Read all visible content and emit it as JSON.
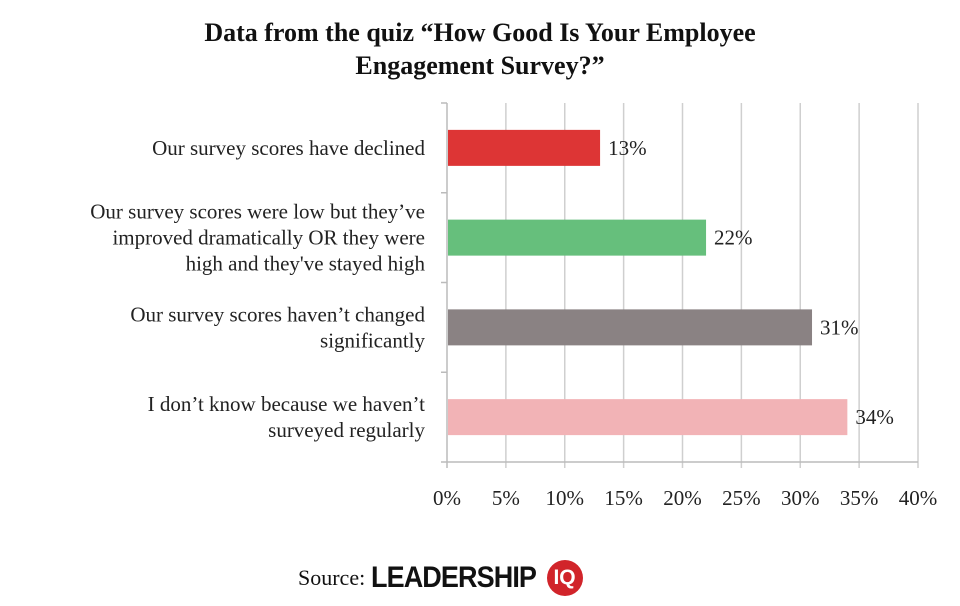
{
  "chart_data": {
    "type": "bar",
    "orientation": "horizontal",
    "title": "Data from the quiz “How Good Is Your Employee Engagement Survey?”",
    "title_lines": [
      "Data from the quiz “How Good Is Your Employee",
      "Engagement Survey?”"
    ],
    "categories": [
      [
        "Our survey scores have declined"
      ],
      [
        "Our survey scores were low but they’ve",
        "improved dramatically OR they were",
        "high and they've stayed high"
      ],
      [
        "Our survey scores haven’t changed",
        "significantly"
      ],
      [
        "I don’t know because we haven’t",
        "surveyed regularly"
      ]
    ],
    "values": [
      13,
      22,
      31,
      34
    ],
    "data_labels": [
      "13%",
      "22%",
      "31%",
      "34%"
    ],
    "colors": [
      "#dd3535",
      "#66bf7c",
      "#8a8283",
      "#f2b3b6"
    ],
    "xlim": [
      0,
      40
    ],
    "xticks": [
      0,
      5,
      10,
      15,
      20,
      25,
      30,
      35,
      40
    ],
    "xtick_labels": [
      "0%",
      "5%",
      "10%",
      "15%",
      "20%",
      "25%",
      "30%",
      "35%",
      "40%"
    ],
    "grid": "vertical",
    "xlabel": "",
    "ylabel": ""
  },
  "source": {
    "label": "Source:",
    "brand": "LEADERSHIP",
    "brand_badge": "IQ"
  }
}
